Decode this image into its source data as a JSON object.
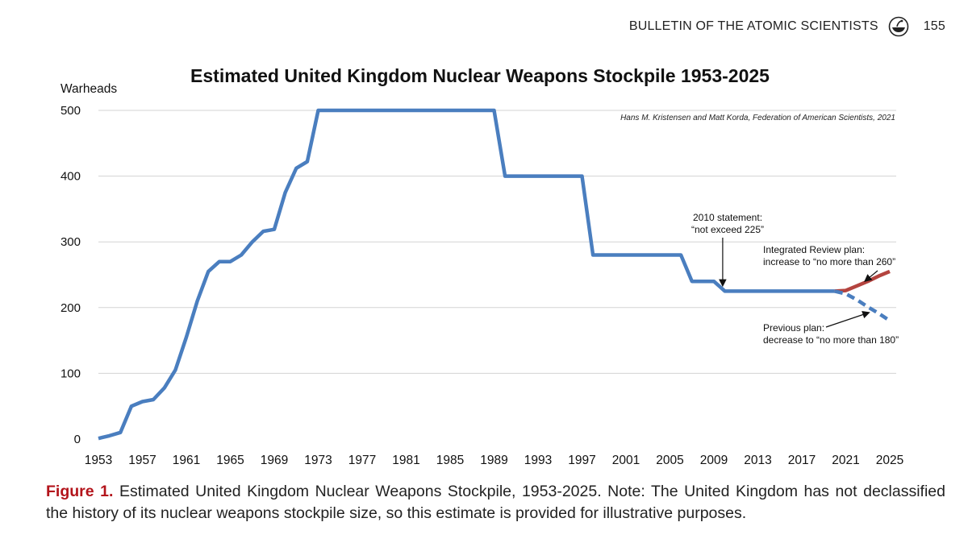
{
  "header": {
    "journal": "BULLETIN OF THE ATOMIC SCIENTISTS",
    "page_number": "155",
    "logo_icon": "atomic-bulletin-logo-icon"
  },
  "caption": {
    "label": "Figure 1.",
    "text": "Estimated United Kingdom Nuclear Weapons Stockpile, 1953-2025. Note: The United Kingdom has not declassified the history of its nuclear weapons stockpile size, so this estimate is provided for illustrative purposes."
  },
  "chart_data": {
    "type": "line",
    "title": "Estimated United Kingdom Nuclear Weapons Stockpile 1953-2025",
    "ylabel": "Warheads",
    "xlabel": "",
    "credit": "Hans M. Kristensen and Matt Korda, Federation of American Scientists, 2021",
    "xlim": [
      1953,
      2025
    ],
    "ylim": [
      0,
      500
    ],
    "x_ticks": [
      "1953",
      "1957",
      "1961",
      "1965",
      "1969",
      "1973",
      "1977",
      "1981",
      "1985",
      "1989",
      "1993",
      "1997",
      "2001",
      "2005",
      "2009",
      "2013",
      "2017",
      "2021",
      "2025"
    ],
    "y_ticks": [
      "0",
      "100",
      "200",
      "300",
      "400",
      "500"
    ],
    "grid": "horizontal",
    "colors": {
      "main": "#4a7ebf",
      "increase": "#b4443f",
      "decrease": "#4a7ebf"
    },
    "series": [
      {
        "style": "solid",
        "color": "#4a7ebf",
        "points": [
          [
            1953,
            1
          ],
          [
            1954,
            5
          ],
          [
            1955,
            10
          ],
          [
            1956,
            50
          ],
          [
            1957,
            57
          ],
          [
            1958,
            60
          ],
          [
            1959,
            78
          ],
          [
            1960,
            105
          ],
          [
            1961,
            155
          ],
          [
            1962,
            210
          ],
          [
            1963,
            255
          ],
          [
            1964,
            270
          ],
          [
            1965,
            270
          ],
          [
            1966,
            280
          ],
          [
            1967,
            300
          ],
          [
            1968,
            316
          ],
          [
            1969,
            319
          ],
          [
            1970,
            375
          ],
          [
            1971,
            412
          ],
          [
            1972,
            422
          ],
          [
            1973,
            500
          ],
          [
            1989,
            500
          ],
          [
            1990,
            400
          ],
          [
            1997,
            400
          ],
          [
            1998,
            280
          ],
          [
            2006,
            280
          ],
          [
            2007,
            240
          ],
          [
            2009,
            240
          ],
          [
            2010,
            225
          ],
          [
            2020,
            225
          ]
        ]
      },
      {
        "style": "solid",
        "color": "#b4443f",
        "points": [
          [
            2020,
            225
          ],
          [
            2021,
            226
          ],
          [
            2022,
            233
          ],
          [
            2023,
            240
          ],
          [
            2024,
            248
          ],
          [
            2025,
            255
          ]
        ]
      },
      {
        "style": "dashed",
        "color": "#4a7ebf",
        "points": [
          [
            2020,
            225
          ],
          [
            2021,
            221
          ],
          [
            2022,
            212
          ],
          [
            2023,
            201
          ],
          [
            2024,
            191
          ],
          [
            2025,
            180
          ]
        ]
      }
    ],
    "annotations": [
      {
        "lines": [
          "2010 statement:",
          "“not exceed 225”"
        ],
        "target": [
          2010,
          227
        ],
        "anchor_x": 2009.8,
        "anchor_y": 260
      },
      {
        "lines": [
          "Integrated Review plan:",
          "increase to “no more than 260”"
        ],
        "target": [
          2022.5,
          236
        ],
        "anchor_x": 2021.8,
        "anchor_y": 250
      },
      {
        "lines": [
          "Previous plan:",
          "decrease to “no more than 180”"
        ],
        "target": [
          2023.2,
          197
        ],
        "anchor_x": 2018.8,
        "anchor_y": 182
      }
    ]
  }
}
